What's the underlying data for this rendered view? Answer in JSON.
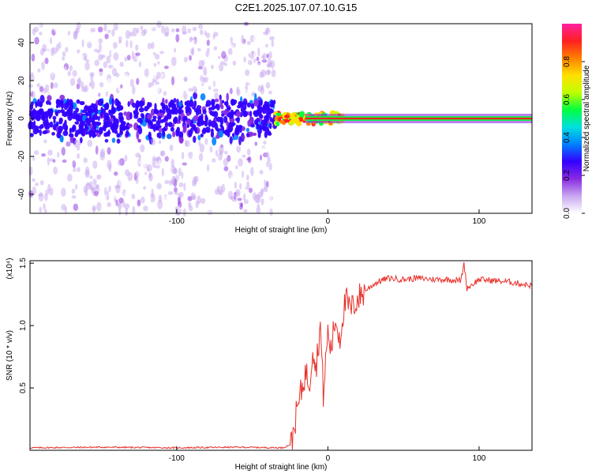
{
  "figure": {
    "title": "C2E1.2025.107.07.10.G15"
  },
  "chart_data": [
    {
      "type": "heatmap",
      "title": "C2E1.2025.107.07.10.G15",
      "xlabel": "Height of straight line (km)",
      "ylabel": "Frequency (Hz)",
      "xlim": [
        -197,
        135
      ],
      "ylim": [
        -50,
        50
      ],
      "xticks": [
        -100,
        0,
        100
      ],
      "yticks": [
        -40,
        -20,
        0,
        20,
        40
      ],
      "colorbar": {
        "label": "Normalized spectral amplitude",
        "range": [
          0,
          1
        ],
        "ticks": [
          "0.0",
          "0.2",
          "0.4",
          "0.6",
          "0.8"
        ],
        "colors": [
          "#ffffff",
          "#c8a8f0",
          "#8a2be2",
          "#3300ff",
          "#0080ff",
          "#00e0e0",
          "#00ff40",
          "#c0ff00",
          "#ffe000",
          "#ff8000",
          "#ff2020",
          "#ff20a0"
        ]
      },
      "regions": [
        {
          "name": "scattered-noise",
          "x": [
            -197,
            -35
          ],
          "freq_spread_hz": 50,
          "amplitude": 0.15
        },
        {
          "name": "transition",
          "x": [
            -35,
            10
          ],
          "freq_spread_hz": 3,
          "amplitude": 0.8
        },
        {
          "name": "stable-carrier",
          "x": [
            10,
            135
          ],
          "freq_hz": 0,
          "amplitude": 0.95
        }
      ]
    },
    {
      "type": "line",
      "xlabel": "Height of straight line (km)",
      "ylabel": "SNR (10 * v/v)",
      "multiplier": "(x10⁴)",
      "xlim": [
        -197,
        135
      ],
      "ylim": [
        0,
        1.52
      ],
      "xticks": [
        -100,
        0,
        100
      ],
      "yticks": [
        "0.5",
        "1.0",
        "1.5"
      ],
      "series": [
        {
          "name": "SNR",
          "color": "#e8302a",
          "x": [
            -197,
            -150,
            -100,
            -60,
            -30,
            -24,
            -22,
            -18,
            -15,
            -12,
            -10,
            -8,
            -5,
            -3,
            0,
            2,
            5,
            8,
            10,
            12,
            15,
            20,
            25,
            30,
            35,
            40,
            50,
            60,
            70,
            80,
            88,
            90,
            92,
            100,
            110,
            120,
            130,
            135
          ],
          "y": [
            0.02,
            0.025,
            0.02,
            0.025,
            0.02,
            0.05,
            0.22,
            0.45,
            0.62,
            0.55,
            0.85,
            0.65,
            1.0,
            0.45,
            0.95,
            0.8,
            1.05,
            0.9,
            1.1,
            1.2,
            1.12,
            1.22,
            1.28,
            1.33,
            1.36,
            1.38,
            1.37,
            1.38,
            1.37,
            1.37,
            1.36,
            1.5,
            1.3,
            1.37,
            1.36,
            1.35,
            1.33,
            1.32
          ]
        }
      ]
    }
  ]
}
